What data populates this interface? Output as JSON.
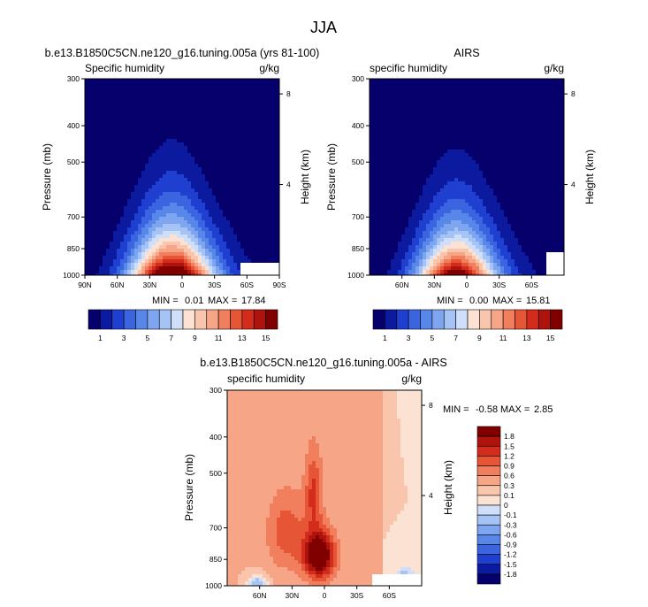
{
  "main_title": "JJA",
  "chart_data": [
    {
      "type": "heatmap",
      "title": "b.e13.B1850C5CN.ne120_g16.tuning.005a (yrs 81-100)",
      "left_label": "Specific humidity",
      "right_label": "g/kg",
      "ylabel": "Pressure (mb)",
      "ylabel_right": "Height (km)",
      "xtick_labels": [
        "90N",
        "60N",
        "30N",
        "0",
        "30S",
        "60S",
        "90S"
      ],
      "xtick_values": [
        90,
        60,
        30,
        0,
        -30,
        -60,
        -90
      ],
      "xlim": [
        90,
        -90
      ],
      "pressure_ticks": [
        "300",
        "400",
        "500",
        "700",
        "850",
        "1000"
      ],
      "pressure_values": [
        300,
        400,
        500,
        700,
        850,
        1000
      ],
      "height_ticks": [
        "8",
        "4"
      ],
      "height_values": [
        8,
        4
      ],
      "stats": {
        "min_label": "MIN =",
        "min": "0.01",
        "max_label": "MAX =",
        "max": "17.84"
      },
      "field": {
        "peak": 17.5,
        "center_lat": 10,
        "scale_height": 2.0,
        "width_surface": 38,
        "width_top": 24,
        "missing_south_of": -55,
        "missing_below_pressure": 930
      },
      "colorbar": {
        "levels": [
          1,
          2,
          3,
          4,
          5,
          6,
          7,
          8,
          9,
          10,
          11,
          12,
          13,
          14,
          15
        ],
        "labels": [
          "1",
          "3",
          "5",
          "7",
          "9",
          "11",
          "13",
          "15"
        ],
        "colors": [
          "#05006b",
          "#0b1a9e",
          "#1f3fd0",
          "#3a64e0",
          "#5887ea",
          "#7da5f0",
          "#a5c3f5",
          "#cfdef9",
          "#fbe2d2",
          "#f9c5ad",
          "#f6a586",
          "#f17e5c",
          "#e65536",
          "#d32b1c",
          "#ae130e",
          "#800000"
        ]
      }
    },
    {
      "type": "heatmap",
      "title": "AIRS",
      "left_label": "specific humidity",
      "right_label": "g/kg",
      "ylabel": "Pressure (mb)",
      "ylabel_right": "Height (km)",
      "xtick_labels": [
        "60N",
        "30N",
        "0",
        "30S",
        "60S"
      ],
      "xtick_values": [
        60,
        30,
        0,
        -30,
        -60
      ],
      "xlim": [
        90,
        -90
      ],
      "pressure_ticks": [
        "300",
        "400",
        "500",
        "700",
        "850",
        "1000"
      ],
      "pressure_values": [
        300,
        400,
        500,
        700,
        850,
        1000
      ],
      "height_ticks": [
        "8",
        "4"
      ],
      "height_values": [
        8,
        4
      ],
      "stats": {
        "min_label": "MIN =",
        "min": "0.00",
        "max_label": "MAX =",
        "max": "15.81"
      },
      "field": {
        "peak": 15.6,
        "center_lat": 10,
        "scale_height": 1.95,
        "width_surface": 36,
        "width_top": 23,
        "missing_south_of": -75,
        "missing_below_pressure": 860
      },
      "colorbar": {
        "levels": [
          1,
          2,
          3,
          4,
          5,
          6,
          7,
          8,
          9,
          10,
          11,
          12,
          13,
          14,
          15
        ],
        "labels": [
          "1",
          "3",
          "5",
          "7",
          "9",
          "11",
          "13",
          "15"
        ],
        "colors": [
          "#05006b",
          "#0b1a9e",
          "#1f3fd0",
          "#3a64e0",
          "#5887ea",
          "#7da5f0",
          "#a5c3f5",
          "#cfdef9",
          "#fbe2d2",
          "#f9c5ad",
          "#f6a586",
          "#f17e5c",
          "#e65536",
          "#d32b1c",
          "#ae130e",
          "#800000"
        ]
      }
    },
    {
      "type": "heatmap",
      "title": "b.e13.B1850C5CN.ne120_g16.tuning.005a - AIRS",
      "left_label": "specific humidity",
      "right_label": "g/kg",
      "ylabel": "Pressure (mb)",
      "ylabel_right": "Height (km)",
      "xtick_labels": [
        "60N",
        "30N",
        "0",
        "30S",
        "60S"
      ],
      "xtick_values": [
        60,
        30,
        0,
        -30,
        -60
      ],
      "xlim": [
        90,
        -90
      ],
      "pressure_ticks": [
        "300",
        "400",
        "500",
        "700",
        "850",
        "1000"
      ],
      "pressure_values": [
        300,
        400,
        500,
        700,
        850,
        1000
      ],
      "height_ticks": [
        "8",
        "4"
      ],
      "height_values": [
        8,
        4
      ],
      "stats": {
        "min_label": "MIN =",
        "min": "-0.58",
        "max_label": "MAX =",
        "max": "2.85"
      },
      "field": {
        "peak": 2.2,
        "center_lat": 5,
        "base": 0.35,
        "missing_south_of": -45,
        "missing_below_pressure": 930
      },
      "colorbar": {
        "levels": [
          -1.8,
          -1.5,
          -1.2,
          -0.9,
          -0.6,
          -0.3,
          -0.1,
          0,
          0.1,
          0.3,
          0.6,
          0.9,
          1.2,
          1.5,
          1.8
        ],
        "labels": [
          "1.8",
          "1.5",
          "1.2",
          "0.9",
          "0.6",
          "0.3",
          "0.1",
          "0",
          "-0.1",
          "-0.3",
          "-0.6",
          "-0.9",
          "-1.2",
          "-1.5",
          "-1.8"
        ],
        "colors": [
          "#05006b",
          "#0b1a9e",
          "#1f3fd0",
          "#3a64e0",
          "#5887ea",
          "#7da5f0",
          "#a5c3f5",
          "#cfdef9",
          "#fbe2d2",
          "#f9c5ad",
          "#f6a586",
          "#f17e5c",
          "#e65536",
          "#d32b1c",
          "#ae130e",
          "#800000"
        ]
      }
    }
  ]
}
